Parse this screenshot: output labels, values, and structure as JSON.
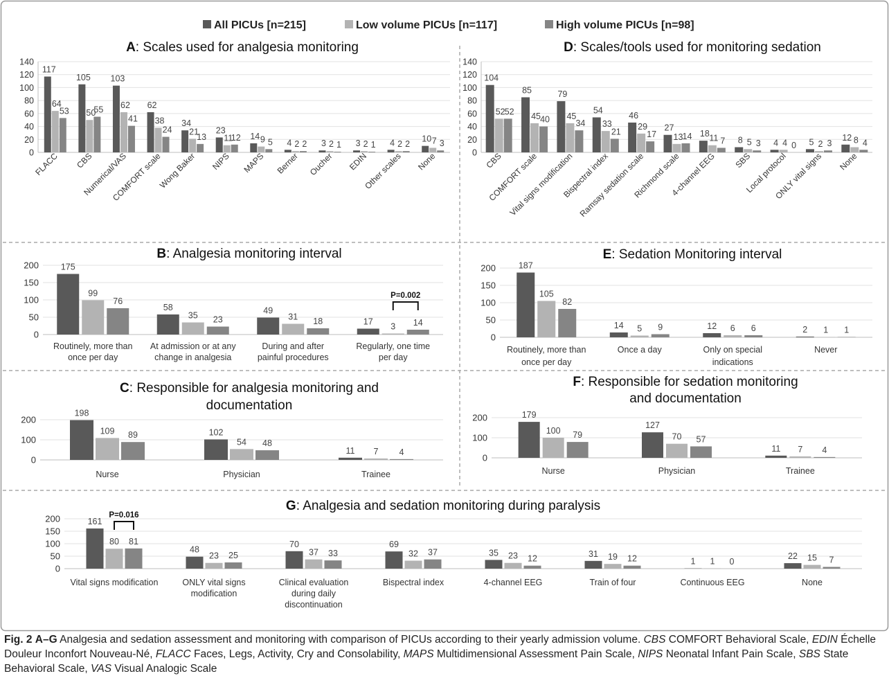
{
  "legend": [
    {
      "label": "All PICUs [n=215]",
      "color": "#595959"
    },
    {
      "label": "Low volume PICUs [n=117]",
      "color": "#b3b3b3"
    },
    {
      "label": "High volume PICUs [n=98]",
      "color": "#858585"
    }
  ],
  "caption": {
    "fig_label": "Fig. 2",
    "panel_label": "A–G",
    "title": "Analgesia and sedation assessment and monitoring with comparison of PICUs according to their yearly admission volume.",
    "abbreviations": [
      {
        "abbr": "CBS",
        "def": "COMFORT Behavioral Scale"
      },
      {
        "abbr": "EDIN",
        "def": "Échelle Douleur Inconfort Nouveau-Né"
      },
      {
        "abbr": "FLACC",
        "def": "Faces, Legs, Activity, Cry and Consolability"
      },
      {
        "abbr": "MAPS",
        "def": "Multidimensional Assessment Pain Scale"
      },
      {
        "abbr": "NIPS",
        "def": "Neonatal Infant Pain Scale"
      },
      {
        "abbr": "SBS",
        "def": "State Behavioral Scale"
      },
      {
        "abbr": "VAS",
        "def": "Visual Analogic Scale"
      }
    ]
  },
  "chart_data": [
    {
      "id": "A",
      "type": "bar",
      "title_letter": "A",
      "title": ": Scales used for analgesia monitoring",
      "ylim": [
        0,
        140
      ],
      "yticks": [
        0,
        20,
        40,
        60,
        80,
        100,
        120,
        140
      ],
      "categories": [
        "FLACC",
        "CBS",
        "Numerical/VAS",
        "COMFORT scale",
        "Wong Baker",
        "NIPS",
        "MAPS",
        "Berner",
        "Oucher",
        "EDIN",
        "Other scales",
        "None"
      ],
      "series": [
        {
          "name": "All PICUs [n=215]",
          "values": [
            117,
            105,
            103,
            62,
            34,
            23,
            14,
            4,
            3,
            3,
            4,
            10
          ]
        },
        {
          "name": "Low volume PICUs [n=117]",
          "values": [
            64,
            50,
            62,
            38,
            21,
            11,
            9,
            2,
            2,
            2,
            2,
            7
          ]
        },
        {
          "name": "High volume PICUs [n=98]",
          "values": [
            53,
            55,
            41,
            24,
            13,
            12,
            5,
            2,
            1,
            1,
            2,
            3
          ]
        }
      ],
      "rotated_labels": true
    },
    {
      "id": "D",
      "type": "bar",
      "title_letter": "D",
      "title": ": Scales/tools used for monitoring sedation",
      "ylim": [
        0,
        140
      ],
      "yticks": [
        0,
        20,
        40,
        60,
        80,
        100,
        120,
        140
      ],
      "categories": [
        "CBS",
        "COMFORT scale",
        "Vital signs modification",
        "Bispectral index",
        "Ramsay sedation scale",
        "Richmond scale",
        "4-channel EEG",
        "SBS",
        "Local protocol",
        "ONLY vital signs",
        "None"
      ],
      "series": [
        {
          "name": "All PICUs [n=215]",
          "values": [
            104,
            85,
            79,
            54,
            46,
            27,
            18,
            8,
            4,
            5,
            12
          ]
        },
        {
          "name": "Low volume PICUs [n=117]",
          "values": [
            52,
            45,
            45,
            33,
            29,
            13,
            11,
            5,
            4,
            2,
            8
          ]
        },
        {
          "name": "High volume PICUs [n=98]",
          "values": [
            52,
            40,
            34,
            21,
            17,
            14,
            7,
            3,
            0,
            3,
            4
          ]
        }
      ],
      "rotated_labels": true
    },
    {
      "id": "B",
      "type": "bar",
      "title_letter": "B",
      "title": ": Analgesia monitoring interval",
      "ylim": [
        0,
        200
      ],
      "yticks": [
        0,
        50,
        100,
        150,
        200
      ],
      "categories": [
        [
          "Routinely, more than",
          "once per day"
        ],
        [
          "At admission or at any",
          "change in analgesia"
        ],
        [
          "During and after",
          "painful procedures"
        ],
        [
          "Regularly, one time",
          "per day"
        ]
      ],
      "series": [
        {
          "name": "All PICUs [n=215]",
          "values": [
            175,
            58,
            49,
            17
          ]
        },
        {
          "name": "Low volume PICUs [n=117]",
          "values": [
            99,
            35,
            31,
            3
          ]
        },
        {
          "name": "High volume PICUs [n=98]",
          "values": [
            76,
            23,
            18,
            14
          ]
        }
      ],
      "significance": {
        "label": "P=0.002",
        "category": 3,
        "from": 1,
        "to": 2
      }
    },
    {
      "id": "E",
      "type": "bar",
      "title_letter": "E",
      "title": ": Sedation Monitoring interval",
      "ylim": [
        0,
        200
      ],
      "yticks": [
        0,
        50,
        100,
        150,
        200
      ],
      "categories": [
        [
          "Routinely, more than",
          "once per day"
        ],
        [
          "Once a day"
        ],
        [
          "Only on special",
          "indications"
        ],
        [
          "Never"
        ]
      ],
      "series": [
        {
          "name": "All PICUs [n=215]",
          "values": [
            187,
            14,
            12,
            2
          ]
        },
        {
          "name": "Low volume PICUs [n=117]",
          "values": [
            105,
            5,
            6,
            1
          ]
        },
        {
          "name": "High volume PICUs [n=98]",
          "values": [
            82,
            9,
            6,
            1
          ]
        }
      ]
    },
    {
      "id": "C",
      "type": "bar",
      "title_letter": "C",
      "title": ": Responsible for analgesia monitoring and",
      "title_line2": "documentation",
      "ylim": [
        0,
        200
      ],
      "yticks": [
        0,
        100,
        200
      ],
      "categories": [
        [
          "Nurse"
        ],
        [
          "Physician"
        ],
        [
          "Trainee"
        ]
      ],
      "series": [
        {
          "name": "All PICUs [n=215]",
          "values": [
            198,
            102,
            11
          ]
        },
        {
          "name": "Low volume PICUs [n=117]",
          "values": [
            109,
            54,
            7
          ]
        },
        {
          "name": "High volume PICUs [n=98]",
          "values": [
            89,
            48,
            4
          ]
        }
      ]
    },
    {
      "id": "F",
      "type": "bar",
      "title_letter": "F",
      "title": ": Responsible for sedation monitoring",
      "title_line2": "and documentation",
      "ylim": [
        0,
        200
      ],
      "yticks": [
        0,
        100,
        200
      ],
      "categories": [
        [
          "Nurse"
        ],
        [
          "Physician"
        ],
        [
          "Trainee"
        ]
      ],
      "series": [
        {
          "name": "All PICUs [n=215]",
          "values": [
            179,
            127,
            11
          ]
        },
        {
          "name": "Low volume PICUs [n=117]",
          "values": [
            100,
            70,
            7
          ]
        },
        {
          "name": "High volume PICUs [n=98]",
          "values": [
            79,
            57,
            4
          ]
        }
      ]
    },
    {
      "id": "G",
      "type": "bar",
      "title_letter": "G",
      "title": ": Analgesia and sedation monitoring during paralysis",
      "ylim": [
        0,
        200
      ],
      "yticks": [
        0,
        50,
        100,
        150,
        200
      ],
      "categories": [
        [
          "Vital signs modification"
        ],
        [
          "ONLY vital signs",
          "modification"
        ],
        [
          "Clinical evaluation",
          "during daily",
          "discontinuation"
        ],
        [
          "Bispectral index"
        ],
        [
          "4-channel EEG"
        ],
        [
          "Train of four"
        ],
        [
          "Continuous EEG"
        ],
        [
          "None"
        ]
      ],
      "series": [
        {
          "name": "All PICUs [n=215]",
          "values": [
            161,
            48,
            70,
            69,
            35,
            31,
            1,
            22
          ]
        },
        {
          "name": "Low volume PICUs [n=117]",
          "values": [
            80,
            23,
            37,
            32,
            23,
            19,
            1,
            15
          ]
        },
        {
          "name": "High volume PICUs [n=98]",
          "values": [
            81,
            25,
            33,
            37,
            12,
            12,
            0,
            7
          ]
        }
      ],
      "significance": {
        "label": "P=0.016",
        "category": 0,
        "from": 1,
        "to": 2
      }
    }
  ]
}
